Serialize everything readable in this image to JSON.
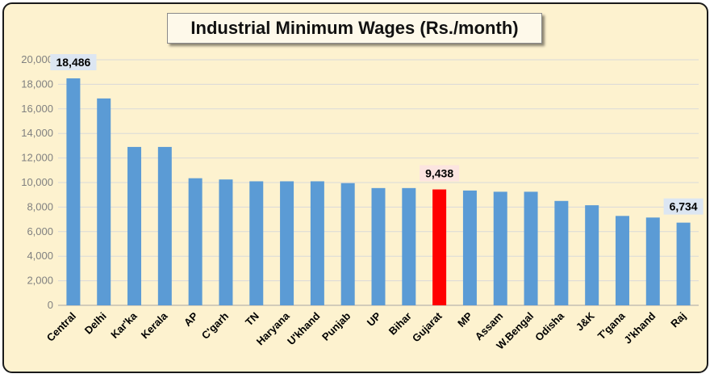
{
  "chart_data": {
    "type": "bar",
    "title": "Industrial Minimum Wages (Rs./month)",
    "xlabel": "",
    "ylabel": "",
    "ylim": [
      0,
      20000
    ],
    "yticks": [
      0,
      2000,
      4000,
      6000,
      8000,
      10000,
      12000,
      14000,
      16000,
      18000,
      20000
    ],
    "ytick_labels": [
      "0",
      "2,000",
      "4,000",
      "6,000",
      "8,000",
      "10,000",
      "12,000",
      "14,000",
      "16,000",
      "18,000",
      "20,000"
    ],
    "grid": true,
    "categories": [
      "Central",
      "Delhi",
      "Kar'ka",
      "Kerala",
      "AP",
      "C'garh",
      "TN",
      "Haryana",
      "U'khand",
      "Punjab",
      "UP",
      "Bihar",
      "Gujarat",
      "MP",
      "Assam",
      "W.Bengal",
      "Odisha",
      "J&K",
      "T'gana",
      "J'khand",
      "Raj"
    ],
    "values": [
      18486,
      16850,
      12900,
      12900,
      10350,
      10250,
      10100,
      10100,
      10100,
      9950,
      9550,
      9550,
      9438,
      9350,
      9250,
      9250,
      8500,
      8150,
      7280,
      7150,
      6734
    ],
    "bar_color": "#5b9bd5",
    "highlight_color": "#ff0000",
    "highlight_category": "Gujarat",
    "callouts": [
      {
        "category": "Central",
        "text": "18,486",
        "bg": "#dce6f2"
      },
      {
        "category": "Gujarat",
        "text": "9,438",
        "bg": "#fce4e0"
      },
      {
        "category": "Raj",
        "text": "6,734",
        "bg": "#dce6f2"
      }
    ]
  }
}
